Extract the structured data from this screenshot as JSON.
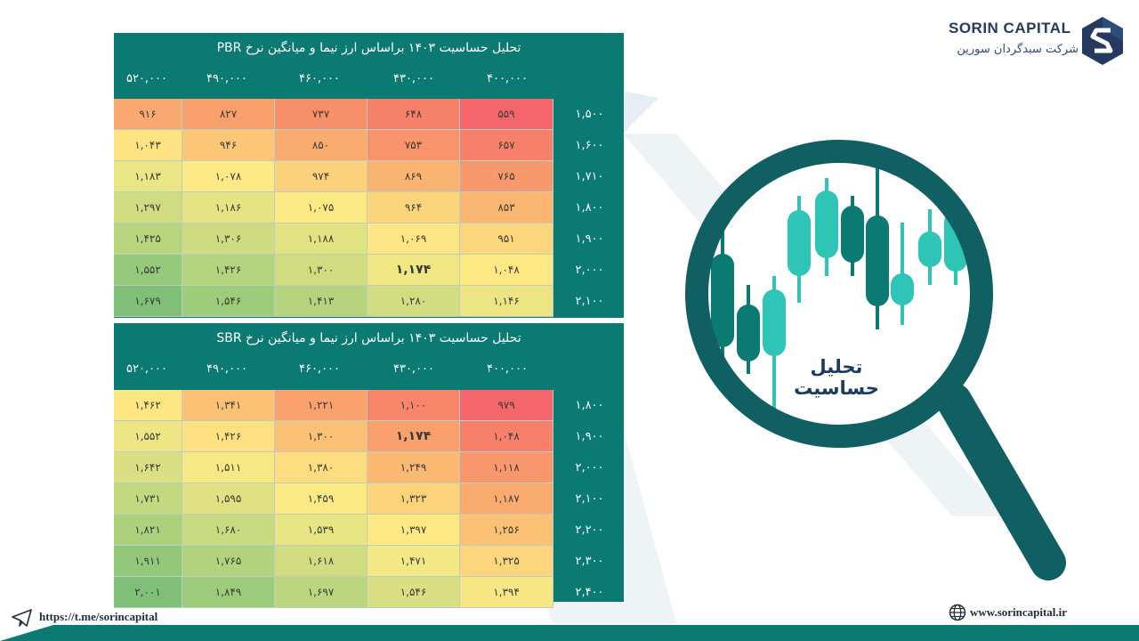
{
  "brand": {
    "name": "SORIN CAPITAL",
    "subtitle": "شرکت سبدگردان سورین",
    "primary_color": "#0b7a73",
    "dark_color": "#1d3a63",
    "accent_color": "#2ec4b6"
  },
  "magnifier": {
    "label": "تحلیل حساسیت"
  },
  "tables": [
    {
      "title": "تحلیل حساسیت ۱۴۰۳ براساس ارز نیما و میانگین نرخ PBR",
      "columns": [
        "۵۲۰,۰۰۰",
        "۴۹۰,۰۰۰",
        "۴۶۰,۰۰۰",
        "۴۳۰,۰۰۰",
        "۴۰۰,۰۰۰"
      ],
      "rows": [
        {
          "label": "۱,۵۰۰",
          "values": [
            "۹۱۶",
            "۸۲۷",
            "۷۳۷",
            "۶۴۸",
            "۵۵۹"
          ]
        },
        {
          "label": "۱,۶۰۰",
          "values": [
            "۱,۰۴۳",
            "۹۴۶",
            "۸۵۰",
            "۷۵۳",
            "۶۵۷"
          ]
        },
        {
          "label": "۱,۷۱۰",
          "values": [
            "۱,۱۸۳",
            "۱,۰۷۸",
            "۹۷۴",
            "۸۶۹",
            "۷۶۵"
          ]
        },
        {
          "label": "۱,۸۰۰",
          "values": [
            "۱,۲۹۷",
            "۱,۱۸۶",
            "۱,۰۷۵",
            "۹۶۴",
            "۸۵۳"
          ]
        },
        {
          "label": "۱,۹۰۰",
          "values": [
            "۱,۴۲۵",
            "۱,۳۰۶",
            "۱,۱۸۸",
            "۱,۰۶۹",
            "۹۵۱"
          ]
        },
        {
          "label": "۲,۰۰۰",
          "values": [
            "۱,۵۵۲",
            "۱,۴۲۶",
            "۱,۳۰۰",
            "۱,۱۷۴",
            "۱,۰۴۸"
          ]
        },
        {
          "label": "۲,۱۰۰",
          "values": [
            "۱,۶۷۹",
            "۱,۵۴۶",
            "۱,۴۱۳",
            "۱,۲۸۰",
            "۱,۱۴۶"
          ]
        }
      ],
      "colors": [
        [
          "#f9a96f",
          "#f8a06b",
          "#f7906a",
          "#f6816a",
          "#f4666b"
        ],
        [
          "#fde381",
          "#fbc676",
          "#f9aa6f",
          "#f8936b",
          "#f6806a"
        ],
        [
          "#eae585",
          "#fee985",
          "#fcd17b",
          "#fab472",
          "#f8996d"
        ],
        [
          "#d0dc80",
          "#e5e384",
          "#fbe984",
          "#fcd47c",
          "#fab573"
        ],
        [
          "#b8d57e",
          "#cfdb80",
          "#e1e282",
          "#fce683",
          "#fbd67c"
        ],
        [
          "#96ca7a",
          "#b4d37d",
          "#d1dc80",
          "#f0e784",
          "#fde884"
        ],
        [
          "#7fbf78",
          "#9dcc7b",
          "#b6d47e",
          "#d2dd81",
          "#ede584"
        ]
      ],
      "bold": [
        [
          5,
          3
        ]
      ]
    },
    {
      "title": "تحلیل حساسیت ۱۴۰۳ براساس ارز نیما و میانگین نرخ SBR",
      "columns": [
        "۵۲۰,۰۰۰",
        "۴۹۰,۰۰۰",
        "۴۶۰,۰۰۰",
        "۴۳۰,۰۰۰",
        "۴۰۰,۰۰۰"
      ],
      "rows": [
        {
          "label": "۱,۸۰۰",
          "values": [
            "۱,۴۶۲",
            "۱,۳۴۱",
            "۱,۲۲۱",
            "۱,۱۰۰",
            "۹۷۹"
          ]
        },
        {
          "label": "۱,۹۰۰",
          "values": [
            "۱,۵۵۲",
            "۱,۴۲۶",
            "۱,۳۰۰",
            "۱,۱۷۴",
            "۱,۰۴۸"
          ]
        },
        {
          "label": "۲,۰۰۰",
          "values": [
            "۱,۶۴۲",
            "۱,۵۱۱",
            "۱,۳۸۰",
            "۱,۲۴۹",
            "۱,۱۱۸"
          ]
        },
        {
          "label": "۲,۱۰۰",
          "values": [
            "۱,۷۳۱",
            "۱,۵۹۵",
            "۱,۴۵۹",
            "۱,۳۲۳",
            "۱,۱۸۷"
          ]
        },
        {
          "label": "۲,۲۰۰",
          "values": [
            "۱,۸۲۱",
            "۱,۶۸۰",
            "۱,۵۳۹",
            "۱,۳۹۷",
            "۱,۲۵۶"
          ]
        },
        {
          "label": "۲,۳۰۰",
          "values": [
            "۱,۹۱۱",
            "۱,۷۶۵",
            "۱,۶۱۸",
            "۱,۴۷۱",
            "۱,۳۲۵"
          ]
        },
        {
          "label": "۲,۴۰۰",
          "values": [
            "۲,۰۰۱",
            "۱,۸۴۹",
            "۱,۶۹۷",
            "۱,۵۴۶",
            "۱,۳۹۴"
          ]
        }
      ],
      "colors": [
        [
          "#fde783",
          "#fbc275",
          "#f9a26d",
          "#f7856a",
          "#f4666b"
        ],
        [
          "#eee685",
          "#fee282",
          "#fbc175",
          "#f9a06d",
          "#f6806a"
        ],
        [
          "#d9df82",
          "#f5e885",
          "#fddd80",
          "#fbb974",
          "#f8976c"
        ],
        [
          "#c3d97f",
          "#e0e183",
          "#fbe984",
          "#fcd27b",
          "#f9ab6f"
        ],
        [
          "#abd17d",
          "#c9da80",
          "#e8e584",
          "#fde883",
          "#fac074"
        ],
        [
          "#93c87a",
          "#b1d37d",
          "#d1dc81",
          "#f2e885",
          "#fcd57c"
        ],
        [
          "#7fbf78",
          "#9ccb7b",
          "#bbd67f",
          "#d9df82",
          "#f6e784"
        ]
      ],
      "bold": [
        [
          1,
          3
        ]
      ]
    }
  ],
  "footer": {
    "telegram": "https://t.me/sorincapital",
    "website": "www.sorincapital.ir"
  }
}
